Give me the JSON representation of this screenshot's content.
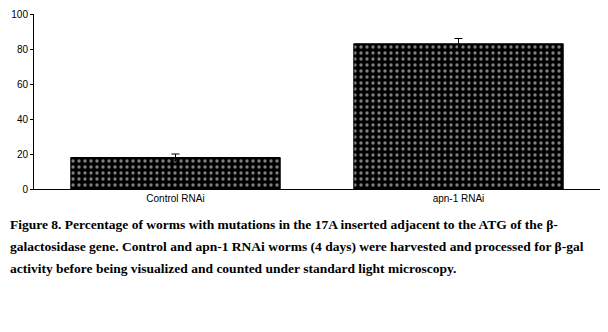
{
  "chart_data": {
    "type": "bar",
    "categories": [
      "Control RNAi",
      "apn-1 RNAi"
    ],
    "values": [
      18,
      83
    ],
    "errors": [
      2,
      3
    ],
    "color": "#000000",
    "ylim": [
      0,
      100
    ],
    "yticks": [
      0,
      20,
      40,
      60,
      80,
      100
    ],
    "grid": false,
    "caption": "Figure 8. Percentage of worms with mutations in the 17A inserted adjacent to the ATG of the β-galactosidase gene. Control and apn-1 RNAi worms (4 days) were harvested and processed for β-gal activity before being visualized and counted under standard light microscopy."
  }
}
